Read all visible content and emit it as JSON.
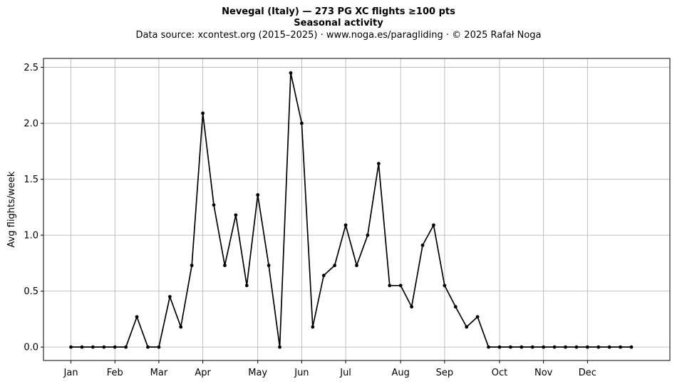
{
  "title": "Nevegal (Italy)  —  273 PG XC flights ≥100 pts",
  "subtitle": "Seasonal activity",
  "source_line": "Data source: xcontest.org (2015–2025)  ·  www.noga.es/paragliding  ·  © 2025 Rafał Noga",
  "colors": {
    "line": "#000000",
    "grid": "#b0b0b0",
    "axes": "#000000"
  },
  "chart_data": {
    "type": "line",
    "title": "Nevegal (Italy)  —  273 PG XC flights ≥100 pts",
    "subtitle": "Seasonal activity",
    "xlabel": "",
    "ylabel": "Avg flights/week",
    "ylim": [
      -0.12,
      2.58
    ],
    "xlim": [
      -2.5,
      54.5
    ],
    "yticks": [
      0.0,
      0.5,
      1.0,
      1.5,
      2.0,
      2.5
    ],
    "ytick_labels": [
      "0.0",
      "0.5",
      "1.0",
      "1.5",
      "2.0",
      "2.5"
    ],
    "xticks": [
      0,
      4,
      8,
      12,
      17,
      21,
      25,
      30,
      34,
      39,
      43,
      47
    ],
    "xtick_labels": [
      "Jan",
      "Feb",
      "Mar",
      "Apr",
      "May",
      "Jun",
      "Jul",
      "Aug",
      "Sep",
      "Oct",
      "Nov",
      "Dec"
    ],
    "grid": true,
    "markers": true,
    "series": [
      {
        "x": [
          0,
          1,
          2,
          3,
          4,
          5,
          6,
          7,
          8,
          9,
          10,
          11,
          12,
          13,
          14,
          15,
          16,
          17,
          18,
          19,
          20,
          21,
          22,
          23,
          24,
          25,
          26,
          27,
          28,
          29,
          30,
          31,
          32,
          33,
          34,
          35,
          36,
          37,
          38,
          39,
          40,
          41,
          42,
          43,
          44,
          45,
          46,
          47,
          48,
          49,
          50,
          51
        ],
        "values": [
          0,
          0,
          0,
          0,
          0,
          0,
          0.27,
          0,
          0,
          0.45,
          0.18,
          0.73,
          2.09,
          1.27,
          0.73,
          1.18,
          0.55,
          1.36,
          0.73,
          0,
          2.45,
          2.0,
          0.18,
          0.64,
          0.73,
          1.09,
          0.73,
          1.0,
          1.64,
          0.55,
          0.55,
          0.36,
          0.91,
          1.09,
          0.55,
          0.36,
          0.18,
          0.27,
          0,
          0,
          0,
          0,
          0,
          0,
          0,
          0,
          0,
          0,
          0,
          0,
          0,
          0
        ]
      }
    ]
  }
}
